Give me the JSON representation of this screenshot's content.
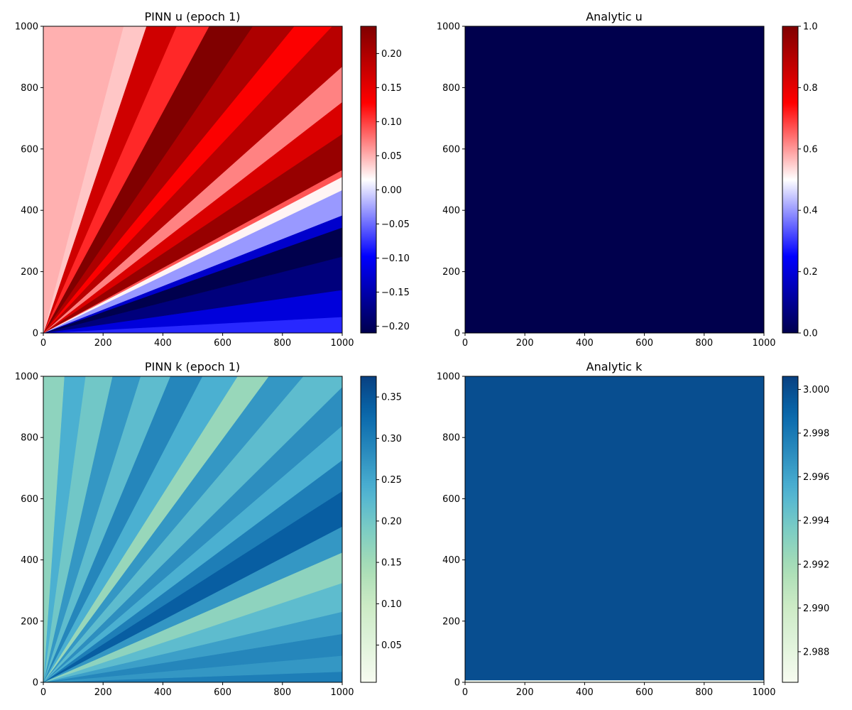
{
  "chart_data": [
    {
      "type": "heatmap",
      "title": "PINN u (epoch 1)",
      "colormap": "seismic",
      "x_ticks": [
        "0",
        "200",
        "400",
        "600",
        "800",
        "1000"
      ],
      "y_ticks": [
        "0",
        "200",
        "400",
        "600",
        "800",
        "1000"
      ],
      "xlim": [
        0,
        1000
      ],
      "ylim": [
        0,
        1000
      ],
      "colorbar": {
        "range": [
          -0.21,
          0.24
        ],
        "ticks": [
          -0.2,
          -0.15,
          -0.1,
          -0.05,
          0.0,
          0.05,
          0.1,
          0.15,
          0.2
        ],
        "tick_labels": [
          "−0.20",
          "−0.15",
          "−0.10",
          "−0.05",
          "0.00",
          "0.05",
          "0.10",
          "0.15",
          "0.20"
        ]
      },
      "pattern": "radial-bands",
      "bands": [
        {
          "angle_from": 0,
          "angle_to": 3,
          "value": -0.08
        },
        {
          "angle_from": 3,
          "angle_to": 8,
          "value": -0.12
        },
        {
          "angle_from": 8,
          "angle_to": 14,
          "value": -0.18
        },
        {
          "angle_from": 14,
          "angle_to": 19,
          "value": -0.21
        },
        {
          "angle_from": 19,
          "angle_to": 21,
          "value": -0.13
        },
        {
          "angle_from": 21,
          "angle_to": 25,
          "value": -0.03
        },
        {
          "angle_from": 25,
          "angle_to": 27,
          "value": 0.02
        },
        {
          "angle_from": 27,
          "angle_to": 28,
          "value": 0.09
        },
        {
          "angle_from": 28,
          "angle_to": 33,
          "value": 0.22
        },
        {
          "angle_from": 33,
          "angle_to": 37,
          "value": 0.16
        },
        {
          "angle_from": 37,
          "angle_to": 41,
          "value": 0.07
        },
        {
          "angle_from": 41,
          "angle_to": 46,
          "value": 0.19
        },
        {
          "angle_from": 46,
          "angle_to": 50,
          "value": 0.13
        },
        {
          "angle_from": 50,
          "angle_to": 55,
          "value": 0.2
        },
        {
          "angle_from": 55,
          "angle_to": 61,
          "value": 0.24
        },
        {
          "angle_from": 61,
          "angle_to": 66,
          "value": 0.11
        },
        {
          "angle_from": 66,
          "angle_to": 71,
          "value": 0.17
        },
        {
          "angle_from": 71,
          "angle_to": 75,
          "value": 0.04
        },
        {
          "angle_from": 75,
          "angle_to": 90,
          "value": 0.05
        }
      ]
    },
    {
      "type": "heatmap",
      "title": "Analytic u",
      "colormap": "seismic",
      "x_ticks": [
        "0",
        "200",
        "400",
        "600",
        "800",
        "1000"
      ],
      "y_ticks": [
        "0",
        "200",
        "400",
        "600",
        "800",
        "1000"
      ],
      "xlim": [
        0,
        1000
      ],
      "ylim": [
        0,
        1000
      ],
      "colorbar": {
        "range": [
          0.0,
          1.0
        ],
        "ticks": [
          0.0,
          0.2,
          0.4,
          0.6,
          0.8,
          1.0
        ],
        "tick_labels": [
          "0.0",
          "0.2",
          "0.4",
          "0.6",
          "0.8",
          "1.0"
        ]
      },
      "pattern": "uniform",
      "value": 0.0
    },
    {
      "type": "heatmap",
      "title": "PINN k (epoch 1)",
      "colormap": "GnBu",
      "x_ticks": [
        "0",
        "200",
        "400",
        "600",
        "800",
        "1000"
      ],
      "y_ticks": [
        "0",
        "200",
        "400",
        "600",
        "800",
        "1000"
      ],
      "xlim": [
        0,
        1000
      ],
      "ylim": [
        0,
        1000
      ],
      "colorbar": {
        "range": [
          0.005,
          0.375
        ],
        "ticks": [
          0.05,
          0.1,
          0.15,
          0.2,
          0.25,
          0.3,
          0.35
        ],
        "tick_labels": [
          "0.05",
          "0.10",
          "0.15",
          "0.20",
          "0.25",
          "0.30",
          "0.35"
        ]
      },
      "pattern": "radial-bands",
      "bands": [
        {
          "angle_from": 0,
          "angle_to": 2,
          "value": 0.3
        },
        {
          "angle_from": 2,
          "angle_to": 5,
          "value": 0.27
        },
        {
          "angle_from": 5,
          "angle_to": 9,
          "value": 0.29
        },
        {
          "angle_from": 9,
          "angle_to": 13,
          "value": 0.26
        },
        {
          "angle_from": 13,
          "angle_to": 18,
          "value": 0.22
        },
        {
          "angle_from": 18,
          "angle_to": 23,
          "value": 0.17
        },
        {
          "angle_from": 23,
          "angle_to": 27,
          "value": 0.27
        },
        {
          "angle_from": 27,
          "angle_to": 32,
          "value": 0.34
        },
        {
          "angle_from": 32,
          "angle_to": 36,
          "value": 0.3
        },
        {
          "angle_from": 36,
          "angle_to": 40,
          "value": 0.24
        },
        {
          "angle_from": 40,
          "angle_to": 44,
          "value": 0.28
        },
        {
          "angle_from": 44,
          "angle_to": 49,
          "value": 0.22
        },
        {
          "angle_from": 49,
          "angle_to": 53,
          "value": 0.27
        },
        {
          "angle_from": 53,
          "angle_to": 57,
          "value": 0.16
        },
        {
          "angle_from": 57,
          "angle_to": 62,
          "value": 0.24
        },
        {
          "angle_from": 62,
          "angle_to": 67,
          "value": 0.29
        },
        {
          "angle_from": 67,
          "angle_to": 72,
          "value": 0.22
        },
        {
          "angle_from": 72,
          "angle_to": 77,
          "value": 0.27
        },
        {
          "angle_from": 77,
          "angle_to": 82,
          "value": 0.2
        },
        {
          "angle_from": 82,
          "angle_to": 86,
          "value": 0.24
        },
        {
          "angle_from": 86,
          "angle_to": 90,
          "value": 0.17
        }
      ]
    },
    {
      "type": "heatmap",
      "title": "Analytic k",
      "colormap": "GnBu",
      "x_ticks": [
        "0",
        "200",
        "400",
        "600",
        "800",
        "1000"
      ],
      "y_ticks": [
        "0",
        "200",
        "400",
        "600",
        "800",
        "1000"
      ],
      "xlim": [
        0,
        1000
      ],
      "ylim": [
        0,
        1000
      ],
      "colorbar": {
        "range": [
          2.9866,
          3.0006
        ],
        "ticks": [
          2.988,
          2.99,
          2.992,
          2.994,
          2.996,
          2.998,
          3.0
        ],
        "tick_labels": [
          "2.988",
          "2.990",
          "2.992",
          "2.994",
          "2.996",
          "2.998",
          "3.000"
        ]
      },
      "pattern": "uniform",
      "value": 3.0,
      "bottom_row_value": 2.9866
    }
  ]
}
